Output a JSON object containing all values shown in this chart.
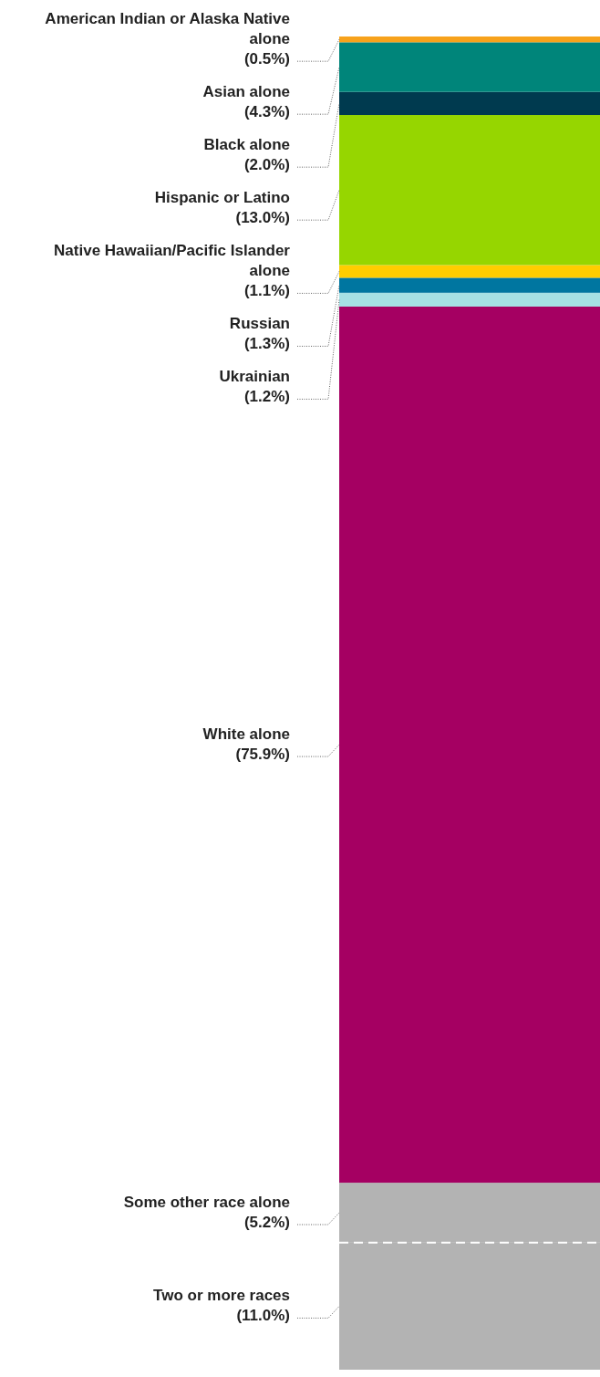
{
  "chart_data": {
    "type": "bar",
    "stacked": true,
    "categories": [
      null
    ],
    "legend": false,
    "series": [
      {
        "name": "Two or more races",
        "color": "#b3b3b3",
        "values": [
          11.0
        ],
        "value_labels": [
          "(11.0%)"
        ]
      },
      {
        "name": "Some other race alone",
        "color": "#b3b3b3",
        "values": [
          5.2
        ],
        "value_labels": [
          "(5.2%)"
        ]
      },
      {
        "name": "White alone",
        "color": "#a50062",
        "values": [
          75.9
        ],
        "value_labels": [
          "(75.9%)"
        ]
      },
      {
        "name": "Ukrainian",
        "color": "#a6e0e4",
        "values": [
          1.2
        ],
        "value_labels": [
          "(1.2%)"
        ]
      },
      {
        "name": "Russian",
        "color": "#0076a0",
        "values": [
          1.3
        ],
        "value_labels": [
          "(1.3%)"
        ]
      },
      {
        "name": "Native Hawaiian/Pacific Islander alone",
        "color": "#ffcd00",
        "values": [
          1.1
        ],
        "value_labels": [
          "(1.1%)"
        ]
      },
      {
        "name": "Hispanic or Latino",
        "color": "#96d600",
        "values": [
          13.0
        ],
        "value_labels": [
          "(13.0%)"
        ]
      },
      {
        "name": "Black alone",
        "color": "#003a4f",
        "values": [
          2.0
        ],
        "value_labels": [
          "(2.0%)"
        ]
      },
      {
        "name": "Asian alone",
        "color": "#00857a",
        "values": [
          4.3
        ],
        "value_labels": [
          "(4.3%)"
        ]
      },
      {
        "name": "American Indian or Alaska Native alone",
        "color": "#f7a21b",
        "values": [
          0.5
        ],
        "value_labels": [
          "(0.5%)"
        ]
      }
    ]
  }
}
